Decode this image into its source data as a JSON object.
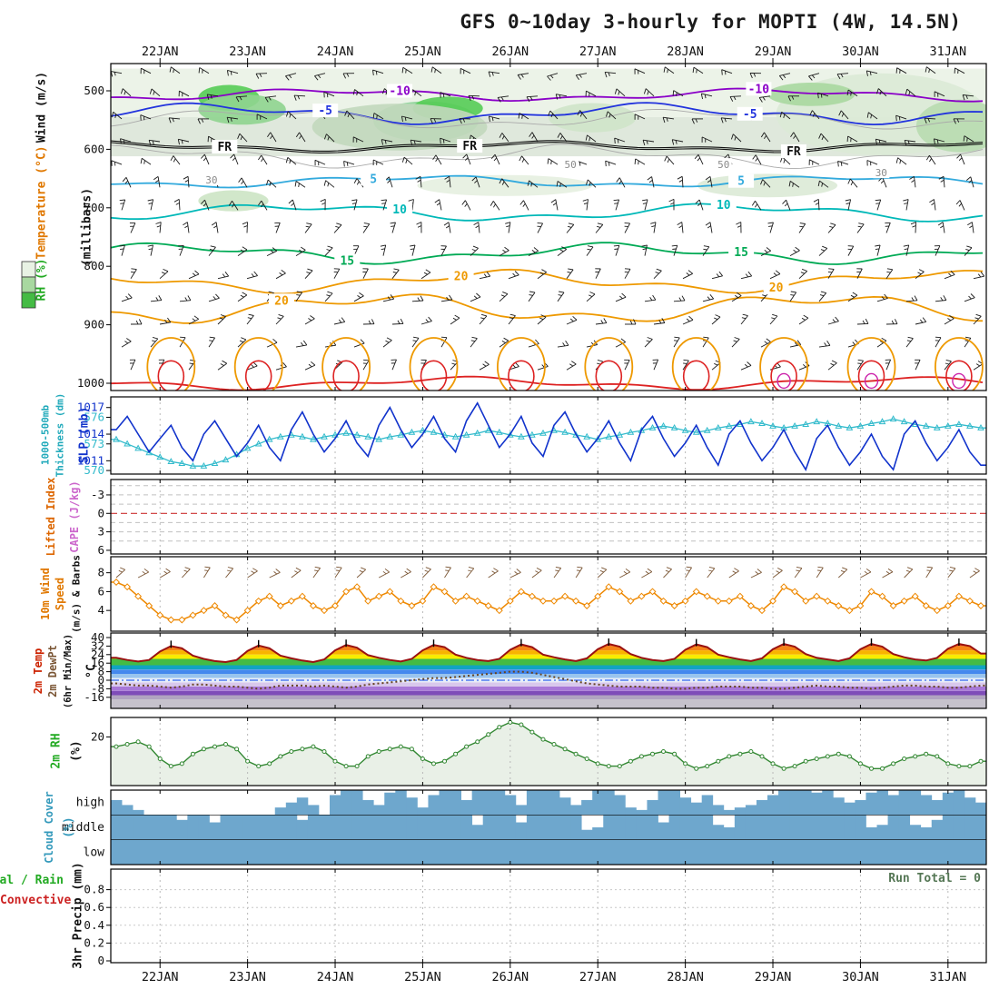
{
  "title": "GFS 0~10day 3-hourly for MOPTI (4W, 14.5N)",
  "x_labels": [
    "22JAN",
    "23JAN",
    "24JAN",
    "25JAN",
    "26JAN",
    "27JAN",
    "28JAN",
    "29JAN",
    "30JAN",
    "31JAN"
  ],
  "labels": {
    "p1_wind": "Wind (m/s)",
    "p1_temp": "Temperature (°C)",
    "p1_rh": "RH (%)",
    "p1_mb": "(millibars)",
    "p2_thk1": "1000-500mb",
    "p2_thk2": "Thickness (dm)",
    "p2_slp": "SLP (mb)",
    "p3_li": "Lifted Index",
    "p3_cape": "CAPE (J/kg)",
    "p4_l1": "10m Wind",
    "p4_l2": "Speed",
    "p4_l3": "(m/s) & Barbs",
    "p5_l1": "2m Temp",
    "p5_l2": "2m DewPt",
    "p5_l3": "(6hr Min/Max)",
    "p5_degc": "°C",
    "p6_l1": "2m RH",
    "p6_l2": "(%)",
    "p7_l1": "Cloud Cover",
    "p7_l2": "(%)",
    "p8_l1": "3hr Precip (mm)",
    "p8_total": "Total / Rain",
    "p8_conv": "Convective",
    "p8_run": "Run Total = 0"
  },
  "chart_data": [
    {
      "name": "upper_air",
      "type": "heatmap",
      "ylabel": "(millibars)",
      "yticks": [
        500,
        600,
        700,
        800,
        900,
        1000
      ],
      "rh_legend_colors": [
        "#e8f2e4",
        "#a8d8a0",
        "#44bb44"
      ],
      "contours": [
        {
          "label": "-10",
          "color": "#8a00c8",
          "p": 507,
          "amp": 5,
          "label_at": [
            0.33,
            0.74
          ]
        },
        {
          "label": "-5",
          "color": "#2233dd",
          "p": 539,
          "amp": 8,
          "label_at": [
            0.245,
            0.73
          ]
        },
        {
          "label": "FR",
          "color": "#111111",
          "p": 596,
          "amp": 4,
          "double": true,
          "label_at": [
            0.13,
            0.41,
            0.78
          ]
        },
        {
          "label": "5",
          "color": "#33aadd",
          "p": 655,
          "amp": 5,
          "label_at": [
            0.3,
            0.72
          ]
        },
        {
          "label": "10",
          "color": "#00b8b8",
          "p": 708,
          "amp": 7,
          "label_at": [
            0.33,
            0.7
          ]
        },
        {
          "label": "15",
          "color": "#00aa55",
          "p": 778,
          "amp": 8,
          "label_at": [
            0.27,
            0.72
          ]
        },
        {
          "label": "20",
          "color": "#ee9900",
          "p": 826,
          "amp": 9,
          "label_at": [
            0.4,
            0.76
          ]
        },
        {
          "label": "20",
          "color": "#ee9900",
          "p": 872,
          "amp": 12,
          "label_at": [
            0.195
          ]
        },
        {
          "label": "",
          "color": "#aaaaaa",
          "p": 548,
          "amp": 8,
          "thin": true,
          "label_at": []
        },
        {
          "label": "",
          "color": "#aaaaaa",
          "p": 612,
          "amp": 9,
          "thin": true,
          "label_at": []
        },
        {
          "label": "",
          "color": "#dd2222",
          "p": 1000,
          "amp": 5,
          "label_at": []
        }
      ],
      "gray_labels": [
        {
          "t": "30",
          "x": 0.115,
          "p": 652
        },
        {
          "t": "50",
          "x": 0.525,
          "p": 626
        },
        {
          "t": "50",
          "x": 0.7,
          "p": 626
        },
        {
          "t": "30",
          "x": 0.88,
          "p": 640
        }
      ],
      "shade_bands": [
        {
          "p1": 545,
          "p2": 612,
          "color": "#dfe8dc"
        },
        {
          "p1": 462,
          "p2": 545,
          "color": "#ecf3e8"
        }
      ],
      "shade_blobs": [
        [
          0.135,
          512,
          0.035,
          22,
          "#55cc55"
        ],
        [
          0.15,
          532,
          0.05,
          26,
          "#8fd48f"
        ],
        [
          0.36,
          552,
          0.06,
          34,
          "#8fd49a"
        ],
        [
          0.385,
          530,
          0.04,
          20,
          "#55cc55"
        ],
        [
          0.33,
          562,
          0.1,
          40,
          "#c2d8bc"
        ],
        [
          0.55,
          546,
          0.05,
          25,
          "#cfe4c9"
        ],
        [
          0.88,
          540,
          0.12,
          70,
          "#dcead6"
        ],
        [
          0.8,
          506,
          0.05,
          20,
          "#a8d8a0"
        ],
        [
          0.97,
          560,
          0.05,
          45,
          "#b8dcb0"
        ],
        [
          0.14,
          688,
          0.04,
          18,
          "#cce4c4"
        ],
        [
          0.75,
          662,
          0.08,
          20,
          "#dcead6"
        ],
        [
          0.45,
          662,
          0.1,
          18,
          "#e6efe0"
        ]
      ],
      "warm_loop_days": [
        0,
        1,
        2,
        3,
        4,
        5,
        6,
        7,
        8,
        9
      ],
      "magenta_days": [
        7,
        8,
        9
      ],
      "outer_loop_color": "#ee9900",
      "inner_loop_color": "#dd2222",
      "barb_rows": [
        [
          470,
          190
        ],
        [
          509,
          198
        ],
        [
          548,
          206
        ],
        [
          587,
          214
        ],
        [
          626,
          224
        ],
        [
          665,
          240
        ],
        [
          704,
          262
        ],
        [
          743,
          286
        ],
        [
          782,
          308
        ],
        [
          821,
          322
        ],
        [
          860,
          330
        ],
        [
          899,
          334
        ],
        [
          938,
          326
        ],
        [
          977,
          318
        ]
      ]
    },
    {
      "name": "slp_thickness",
      "type": "line",
      "yticks_slp": [
        1017,
        1014,
        1011
      ],
      "yticks_thk": [
        576,
        573,
        570
      ],
      "slp_range": [
        1009.5,
        1018.2
      ],
      "thk_range": [
        569.6,
        578.3
      ],
      "slp_color": "#1133cc",
      "thk_color": "#33bbcc",
      "slp": [
        1014.5,
        1016,
        1014,
        1012,
        1013.5,
        1015,
        1012.5,
        1011,
        1014,
        1015.5,
        1013.5,
        1011.5,
        1013,
        1015,
        1012.5,
        1011,
        1014.5,
        1016.5,
        1014,
        1012,
        1013.5,
        1015.5,
        1013,
        1011.5,
        1015,
        1017,
        1014.5,
        1012.5,
        1014,
        1016,
        1013.5,
        1012,
        1015.5,
        1017.5,
        1015,
        1012.5,
        1014,
        1016,
        1013,
        1011.5,
        1015,
        1016.5,
        1014,
        1012,
        1013.5,
        1015.5,
        1013,
        1011,
        1014.5,
        1016,
        1013.5,
        1011.5,
        1013,
        1015,
        1012.5,
        1010.5,
        1014,
        1015.5,
        1013,
        1011,
        1012.5,
        1014.5,
        1012,
        1010,
        1013.5,
        1015,
        1012.5,
        1010.5,
        1012,
        1014,
        1011.5,
        1010,
        1014,
        1015.5,
        1013,
        1011,
        1012.5,
        1014.5,
        1012,
        1010.5
      ],
      "thickness": [
        573.5,
        573,
        572.5,
        572,
        571.5,
        571,
        570.8,
        570.5,
        570.5,
        570.8,
        571.2,
        571.8,
        572.5,
        573,
        573.5,
        573.8,
        574,
        573.8,
        573.5,
        573.8,
        574,
        574.2,
        574,
        573.8,
        573.5,
        573.8,
        574,
        574.3,
        574.5,
        574.3,
        574,
        573.8,
        574,
        574.2,
        574.5,
        574.3,
        574,
        573.8,
        574,
        574.2,
        574.5,
        574.3,
        574,
        573.8,
        573.5,
        573.8,
        574,
        574.3,
        574.5,
        574.8,
        575,
        574.8,
        574.5,
        574.3,
        574.5,
        574.8,
        575,
        575.2,
        575.5,
        575.3,
        575,
        574.8,
        575,
        575.2,
        575.5,
        575.3,
        575,
        574.8,
        575,
        575.3,
        575.5,
        575.8,
        575.5,
        575.2,
        575,
        574.8,
        575,
        575.2,
        575,
        574.8
      ]
    },
    {
      "name": "lifted_index_cape",
      "type": "line",
      "yticks": [
        -3,
        0,
        3,
        6
      ],
      "range": [
        -5.5,
        6.6
      ],
      "grid": [
        -4.5,
        -3,
        -1.5,
        1.5,
        3,
        4.5
      ],
      "zero_color": "#cc3333"
    },
    {
      "name": "wind10m",
      "type": "line",
      "yticks": [
        4,
        6,
        8
      ],
      "range": [
        1.8,
        9.7
      ],
      "color": "#ee8800",
      "barb_color": "#7a5534",
      "speed": [
        7,
        6.5,
        5.5,
        4.5,
        3.5,
        3,
        3,
        3.5,
        4,
        4.5,
        3.5,
        3,
        4,
        5,
        5.5,
        4.5,
        5,
        5.5,
        4.5,
        4,
        4.5,
        6,
        6.5,
        5,
        5.5,
        6,
        5,
        4.5,
        5,
        6.5,
        6,
        5,
        5.5,
        5,
        4.5,
        4,
        5,
        6,
        5.5,
        5,
        5,
        5.5,
        5,
        4.5,
        5.5,
        6.5,
        6,
        5,
        5.5,
        6,
        5,
        4.5,
        5,
        6,
        5.5,
        5,
        5,
        5.5,
        4.5,
        4,
        5,
        6.5,
        6,
        5,
        5.5,
        5,
        4.5,
        4,
        4.5,
        6,
        5.5,
        4.5,
        5,
        5.5,
        4.5,
        4,
        4.5,
        5.5,
        5,
        4.5
      ]
    },
    {
      "name": "temp2m",
      "type": "line",
      "yticks": [
        40,
        32,
        24,
        16,
        8,
        0,
        -8,
        -16
      ],
      "temp_color": "#991111",
      "dew_color": "#664422",
      "zero_line_color": "#3366ee",
      "bands": [
        [
          36,
          44,
          "#cc1414"
        ],
        [
          32,
          36,
          "#e84818"
        ],
        [
          28,
          32,
          "#f48418"
        ],
        [
          24,
          28,
          "#f8b400"
        ],
        [
          20,
          24,
          "#f8ec00"
        ],
        [
          14,
          20,
          "#44bb44"
        ],
        [
          10,
          14,
          "#11a3c2"
        ],
        [
          6,
          10,
          "#4488ee"
        ],
        [
          2,
          6,
          "#99c4ee"
        ],
        [
          -2,
          2,
          "#e8eef8"
        ],
        [
          -6,
          -2,
          "#d8c8ec"
        ],
        [
          -10,
          -6,
          "#a878d8"
        ],
        [
          -14,
          -10,
          "#7e4cb8"
        ],
        [
          -18,
          -14,
          "#b0a4c0"
        ],
        [
          -27,
          -18,
          "#c6c2cc"
        ]
      ],
      "temp": [
        21,
        19,
        17.5,
        19,
        27,
        32,
        30,
        23,
        20,
        18,
        17,
        19,
        27.5,
        32.5,
        30,
        23,
        20.5,
        18.5,
        17,
        19.5,
        28,
        33,
        30.5,
        23.5,
        21,
        19,
        17.5,
        20,
        28,
        33,
        31,
        24,
        21,
        19,
        18,
        20,
        28.5,
        33.5,
        31,
        24,
        21.5,
        19.5,
        18,
        20.5,
        29,
        34,
        31.5,
        24.5,
        21,
        19,
        18,
        20,
        28.5,
        33.5,
        31,
        24,
        21.5,
        19.5,
        18,
        20.5,
        29,
        34,
        31.5,
        24.5,
        21,
        19.5,
        18,
        20.5,
        29,
        34,
        31.5,
        24.5,
        21.5,
        19.5,
        18.5,
        21,
        29.5,
        34,
        32,
        25
      ],
      "dewpt": [
        -3,
        -4,
        -5,
        -5,
        -6,
        -7,
        -6,
        -4,
        -4,
        -5,
        -6,
        -6,
        -7,
        -8,
        -7,
        -5,
        -5,
        -5,
        -6,
        -5,
        -6,
        -7,
        -6,
        -4,
        -3,
        -2,
        -1,
        0,
        1,
        2,
        2,
        3,
        4,
        5,
        6,
        7,
        8,
        8,
        7,
        5,
        3,
        1,
        -1,
        -3,
        -4,
        -5,
        -6,
        -6,
        -6,
        -7,
        -7,
        -8,
        -8,
        -7,
        -7,
        -6,
        -6,
        -6,
        -7,
        -7,
        -8,
        -8,
        -7,
        -6,
        -5,
        -6,
        -6,
        -7,
        -7,
        -8,
        -7,
        -6,
        -5,
        -5,
        -6,
        -6,
        -7,
        -7,
        -6,
        -5
      ]
    },
    {
      "name": "rh2m",
      "type": "area",
      "yticks": [
        20
      ],
      "range": [
        0,
        28
      ],
      "color": "#338833",
      "fill": "#e9f0e7",
      "rh": [
        16,
        17,
        18,
        16,
        11,
        8,
        9,
        13,
        15,
        16,
        17,
        15,
        10,
        8,
        9,
        12,
        14,
        15,
        16,
        14,
        10,
        8,
        8,
        12,
        14,
        15,
        16,
        15,
        11,
        9,
        10,
        13,
        16,
        18,
        21,
        24,
        26,
        25,
        22,
        19,
        17,
        15,
        13,
        11,
        9,
        8,
        8,
        10,
        12,
        13,
        14,
        13,
        9,
        7,
        8,
        10,
        12,
        13,
        14,
        12,
        9,
        7,
        8,
        10,
        11,
        12,
        13,
        12,
        9,
        7,
        7,
        9,
        11,
        12,
        13,
        12,
        9,
        8,
        8,
        10
      ]
    },
    {
      "name": "cloud_cover",
      "type": "bar",
      "rows": [
        "high",
        "middle",
        "low"
      ],
      "color": "#6ea7cd",
      "high": [
        0.6,
        0.4,
        0.2,
        0,
        0,
        0,
        0,
        0,
        0,
        0,
        0,
        0,
        0,
        0,
        0,
        0.3,
        0.5,
        0.7,
        0.4,
        0,
        0.8,
        1,
        1,
        0.6,
        0.4,
        0.9,
        1,
        0.7,
        0.3,
        0.8,
        1,
        1,
        0.6,
        1,
        1,
        1,
        0.8,
        0.4,
        1,
        1,
        1,
        0.7,
        0.4,
        0.6,
        1,
        1,
        0.8,
        0.3,
        0.2,
        0.6,
        1,
        1,
        0.7,
        0.5,
        0.8,
        0.4,
        0.2,
        0.3,
        0.4,
        0.6,
        0.8,
        1,
        1,
        1,
        0.9,
        1,
        0.7,
        0.5,
        0.6,
        0.9,
        1,
        0.8,
        1,
        1,
        0.8,
        0.6,
        0.9,
        1,
        0.7,
        0.5
      ],
      "middle": [
        1,
        1,
        1,
        1,
        1,
        1,
        0.8,
        1,
        1,
        0.7,
        1,
        1,
        1,
        1,
        1,
        1,
        1,
        0.8,
        1,
        1,
        1,
        1,
        1,
        1,
        1,
        1,
        1,
        1,
        1,
        1,
        1,
        1,
        1,
        0.6,
        1,
        1,
        1,
        0.7,
        1,
        1,
        1,
        1,
        1,
        0.4,
        0.5,
        1,
        1,
        1,
        1,
        1,
        0.7,
        1,
        1,
        1,
        1,
        0.6,
        0.5,
        1,
        1,
        1,
        1,
        1,
        1,
        1,
        1,
        1,
        1,
        1,
        1,
        0.5,
        0.6,
        1,
        1,
        0.6,
        0.5,
        0.8,
        1,
        1,
        1,
        1
      ],
      "low_full": 1
    },
    {
      "name": "precip3hr",
      "type": "bar",
      "yticks": [
        0.8,
        0.6,
        0.4,
        0.2,
        0
      ],
      "range": [
        0,
        1.03
      ],
      "total": [],
      "convective": [],
      "run_total": 0
    }
  ]
}
